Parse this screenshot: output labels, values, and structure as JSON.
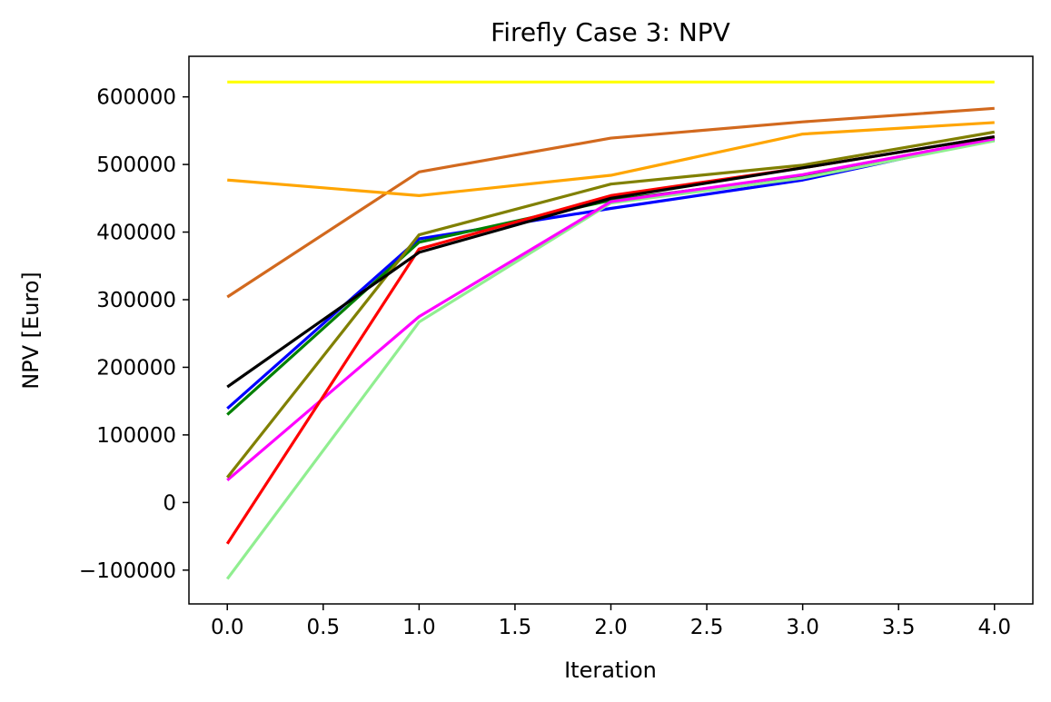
{
  "chart_data": {
    "type": "line",
    "title": "Firefly Case 3: NPV",
    "xlabel": "Iteration",
    "ylabel": "NPV [Euro]",
    "x": [
      0,
      1,
      2,
      3,
      4
    ],
    "xlim": [
      -0.2,
      4.2
    ],
    "ylim": [
      -150000,
      660000
    ],
    "xticks": [
      0.0,
      0.5,
      1.0,
      1.5,
      2.0,
      2.5,
      3.0,
      3.5,
      4.0
    ],
    "xtick_labels": [
      "0.0",
      "0.5",
      "1.0",
      "1.5",
      "2.0",
      "2.5",
      "3.0",
      "3.5",
      "4.0"
    ],
    "yticks": [
      -100000,
      0,
      100000,
      200000,
      300000,
      400000,
      500000,
      600000
    ],
    "ytick_labels": [
      "−100000",
      "0",
      "100000",
      "200000",
      "300000",
      "400000",
      "500000",
      "600000"
    ],
    "grid": false,
    "series": [
      {
        "color": "#ffff00",
        "values": [
          622000,
          622000,
          622000,
          622000,
          622000
        ]
      },
      {
        "color": "#d2691e",
        "values": [
          304000,
          489000,
          539000,
          563000,
          583000
        ]
      },
      {
        "color": "#ffa500",
        "values": [
          477000,
          454000,
          484000,
          545000,
          562000
        ]
      },
      {
        "color": "#0000ff",
        "values": [
          139000,
          390000,
          435000,
          477000,
          538000
        ]
      },
      {
        "color": "#008000",
        "values": [
          130000,
          385000,
          447000,
          482000,
          536000
        ]
      },
      {
        "color": "#90ee90",
        "values": [
          -113000,
          267000,
          443000,
          480000,
          535000
        ]
      },
      {
        "color": "#ff00ff",
        "values": [
          33000,
          275000,
          445000,
          485000,
          538000
        ]
      },
      {
        "color": "#ff0000",
        "values": [
          -61000,
          375000,
          454000,
          495000,
          541000
        ]
      },
      {
        "color": "#808000",
        "values": [
          37000,
          396000,
          471000,
          499000,
          548000
        ]
      },
      {
        "color": "#000000",
        "values": [
          171000,
          370000,
          450000,
          495000,
          541000
        ]
      }
    ]
  }
}
